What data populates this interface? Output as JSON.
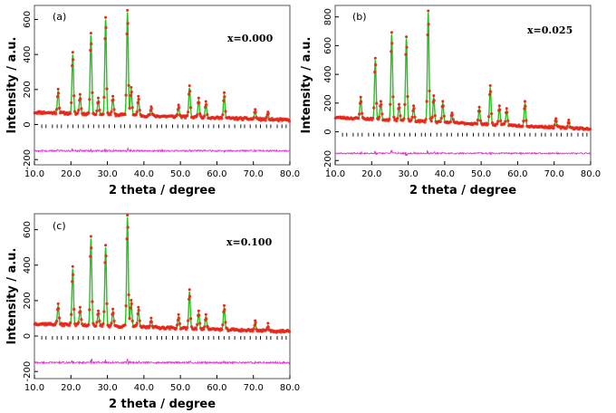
{
  "chart_data": [
    {
      "type": "line",
      "panel": "(a)",
      "composition": "x=0.000",
      "xlabel": "2 theta / degree",
      "ylabel": "Intensity / a.u.",
      "xlim": [
        10,
        80
      ],
      "ylim": [
        -230,
        680
      ],
      "xticks": [
        "10.0",
        "20.0",
        "30.0",
        "40.0",
        "50.0",
        "60.0",
        "70.0",
        "80.0"
      ],
      "yticks": [
        "-200",
        "0",
        "200",
        "400",
        "600"
      ],
      "background": {
        "start": 70,
        "end": 25
      },
      "difference_offset": -150,
      "bragg_row": -10,
      "peaks": [
        {
          "x": 16.5,
          "y": 190
        },
        {
          "x": 20.5,
          "y": 400
        },
        {
          "x": 22.5,
          "y": 160
        },
        {
          "x": 25.5,
          "y": 510
        },
        {
          "x": 27.5,
          "y": 140
        },
        {
          "x": 29.5,
          "y": 600
        },
        {
          "x": 31.5,
          "y": 150
        },
        {
          "x": 35.5,
          "y": 640
        },
        {
          "x": 36.5,
          "y": 200
        },
        {
          "x": 38.5,
          "y": 150
        },
        {
          "x": 42.0,
          "y": 90
        },
        {
          "x": 49.5,
          "y": 100
        },
        {
          "x": 52.5,
          "y": 210
        },
        {
          "x": 55.0,
          "y": 140
        },
        {
          "x": 57.0,
          "y": 120
        },
        {
          "x": 62.0,
          "y": 170
        },
        {
          "x": 70.5,
          "y": 75
        },
        {
          "x": 74.0,
          "y": 60
        }
      ]
    },
    {
      "type": "line",
      "panel": "(b)",
      "composition": "x=0.025",
      "xlabel": "2 theta / degree",
      "ylabel": "Intensity / a.u.",
      "xlim": [
        10,
        80
      ],
      "ylim": [
        -230,
        880
      ],
      "xticks": [
        "10.0",
        "20.0",
        "30.0",
        "40.0",
        "50.0",
        "60.0",
        "70.0",
        "80.0"
      ],
      "yticks": [
        "-200",
        "0",
        "200",
        "400",
        "600",
        "800"
      ],
      "background": {
        "start": 100,
        "end": 20
      },
      "difference_offset": -150,
      "bragg_row": -20,
      "peaks": [
        {
          "x": 17.0,
          "y": 230
        },
        {
          "x": 21.0,
          "y": 500
        },
        {
          "x": 22.5,
          "y": 200
        },
        {
          "x": 25.5,
          "y": 680
        },
        {
          "x": 27.5,
          "y": 180
        },
        {
          "x": 29.5,
          "y": 650
        },
        {
          "x": 31.5,
          "y": 170
        },
        {
          "x": 35.5,
          "y": 830
        },
        {
          "x": 37.0,
          "y": 240
        },
        {
          "x": 39.5,
          "y": 200
        },
        {
          "x": 42.0,
          "y": 120
        },
        {
          "x": 49.5,
          "y": 160
        },
        {
          "x": 52.5,
          "y": 310
        },
        {
          "x": 55.0,
          "y": 170
        },
        {
          "x": 57.0,
          "y": 150
        },
        {
          "x": 62.0,
          "y": 200
        },
        {
          "x": 70.5,
          "y": 80
        },
        {
          "x": 74.0,
          "y": 70
        }
      ]
    },
    {
      "type": "line",
      "panel": "(c)",
      "composition": "x=0.100",
      "xlabel": "2 theta / degree",
      "ylabel": "Intensity / a.u.",
      "xlim": [
        10,
        80
      ],
      "ylim": [
        -240,
        690
      ],
      "xticks": [
        "10.0",
        "20.0",
        "30.0",
        "40.0",
        "50.0",
        "60.0",
        "70.0",
        "80.0"
      ],
      "yticks": [
        "-200",
        "0",
        "200",
        "400",
        "600"
      ],
      "background": {
        "start": 70,
        "end": 25
      },
      "difference_offset": -150,
      "bragg_row": -10,
      "peaks": [
        {
          "x": 16.5,
          "y": 170
        },
        {
          "x": 20.5,
          "y": 380
        },
        {
          "x": 22.5,
          "y": 150
        },
        {
          "x": 25.5,
          "y": 550
        },
        {
          "x": 27.5,
          "y": 130
        },
        {
          "x": 29.5,
          "y": 500
        },
        {
          "x": 31.5,
          "y": 140
        },
        {
          "x": 35.5,
          "y": 670
        },
        {
          "x": 36.5,
          "y": 190
        },
        {
          "x": 38.5,
          "y": 150
        },
        {
          "x": 42.0,
          "y": 90
        },
        {
          "x": 49.5,
          "y": 110
        },
        {
          "x": 52.5,
          "y": 250
        },
        {
          "x": 55.0,
          "y": 130
        },
        {
          "x": 57.0,
          "y": 110
        },
        {
          "x": 62.0,
          "y": 160
        },
        {
          "x": 70.5,
          "y": 75
        },
        {
          "x": 74.0,
          "y": 60
        }
      ]
    }
  ],
  "colors": {
    "observed": "#e8261a",
    "calculated": "#27c21c",
    "difference": "#e23bd6",
    "bragg": "#000000",
    "calc_peak_marker": "#e8261a"
  }
}
